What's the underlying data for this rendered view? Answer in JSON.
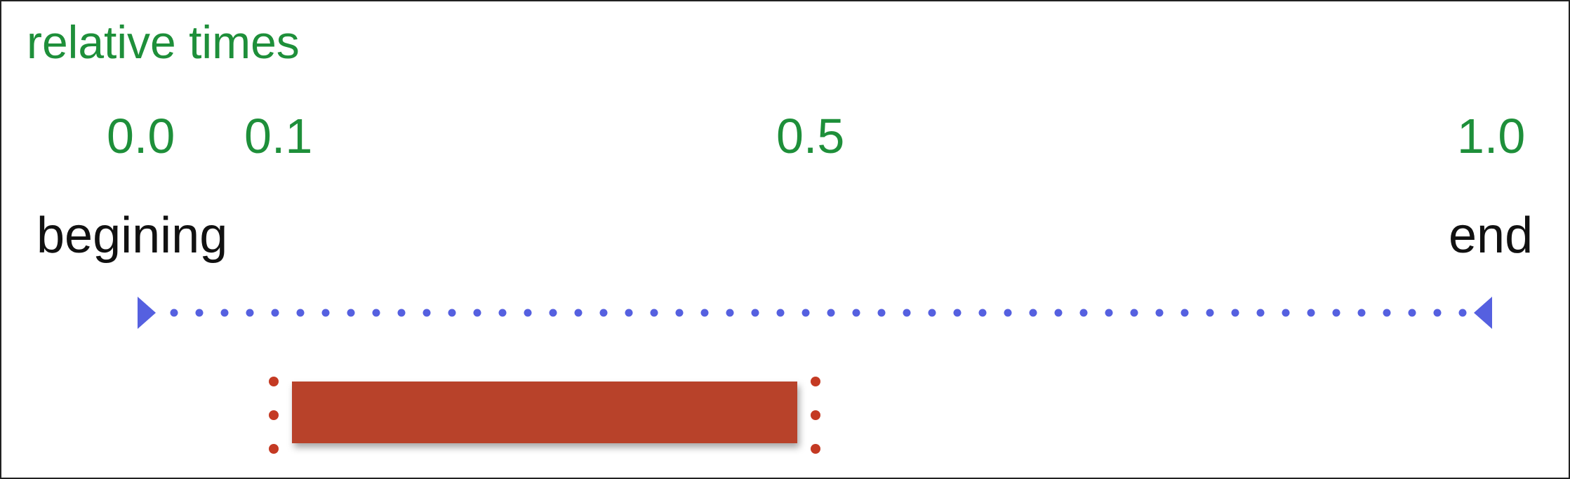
{
  "title": "relative times",
  "ticks": [
    "0.0",
    "0.1",
    "0.5",
    "1.0"
  ],
  "labels": {
    "start": "begining",
    "end": "end"
  },
  "interval": {
    "start": 0.1,
    "end": 0.5
  },
  "colors": {
    "title": "#1e8f3a",
    "ticks": "#1e8f3a",
    "labels": "#111111",
    "timeline": "#5560e0",
    "bar": "#b8432c",
    "bar_markers": "#c43a23"
  }
}
